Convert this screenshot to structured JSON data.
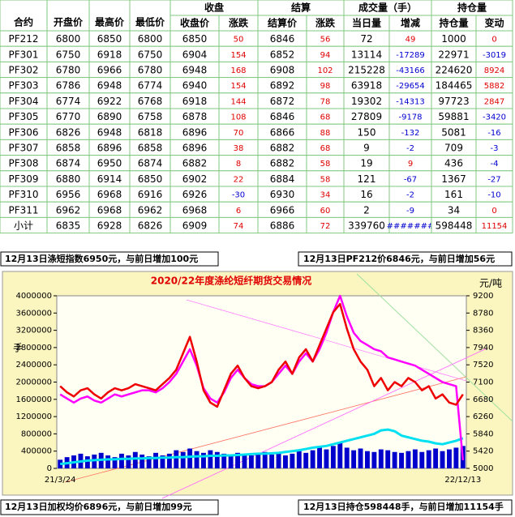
{
  "table": {
    "header": [
      [
        "合约",
        "开盘价",
        "最高价",
        "最低价",
        "收盘",
        "结算",
        "成交量（手）",
        "持仓量"
      ],
      [
        "收盘价",
        "涨跌",
        "结算价",
        "涨跌",
        "当日量",
        "增减",
        "持仓量",
        "变动"
      ]
    ],
    "rows": [
      [
        "PF212",
        6800,
        6850,
        6800,
        6850,
        50,
        6846,
        56,
        72,
        49,
        1000,
        0
      ],
      [
        "PF301",
        6750,
        6918,
        6750,
        6904,
        154,
        6852,
        94,
        13114,
        -17289,
        22971,
        -3019
      ],
      [
        "PF302",
        6780,
        6966,
        6780,
        6948,
        168,
        6908,
        102,
        215228,
        -43166,
        224620,
        8924
      ],
      [
        "PF303",
        6786,
        6948,
        6774,
        6940,
        154,
        6892,
        98,
        63918,
        -29654,
        184465,
        5882
      ],
      [
        "PF304",
        6774,
        6922,
        6768,
        6918,
        144,
        6872,
        78,
        19302,
        -14313,
        97723,
        2847
      ],
      [
        "PF305",
        6770,
        6890,
        6758,
        6878,
        108,
        6846,
        68,
        27809,
        -9178,
        59881,
        -3420
      ],
      [
        "PF306",
        6826,
        6948,
        6818,
        6896,
        70,
        6866,
        88,
        150,
        -132,
        5081,
        -16
      ],
      [
        "PF307",
        6858,
        6896,
        6858,
        6896,
        38,
        6882,
        68,
        9,
        -2,
        709,
        -3
      ],
      [
        "PF308",
        6874,
        6950,
        6874,
        6882,
        8,
        6882,
        58,
        19,
        9,
        436,
        -4
      ],
      [
        "PF309",
        6880,
        6914,
        6850,
        6902,
        22,
        6884,
        58,
        121,
        -67,
        1367,
        -27
      ],
      [
        "PF310",
        6956,
        6968,
        6916,
        6926,
        -30,
        6930,
        34,
        16,
        -2,
        161,
        -10
      ],
      [
        "PF311",
        6962,
        6968,
        6962,
        6968,
        6,
        6966,
        60,
        2,
        -9,
        34,
        0
      ],
      [
        "小计",
        6835,
        6928,
        6826,
        6909,
        74,
        6886,
        72,
        339760,
        "#######",
        598448,
        11154
      ]
    ],
    "up_color": "#e00000",
    "down_color": "#0000d0"
  },
  "notes": [
    "12月13日涤短指数6950元，与前日增加100元",
    "12月13日PF212价6846元，与前日增加56元",
    "12月13日加权均价6896元，与前日增加99元",
    "12月13日持仓598448手，与前日增加11154手"
  ],
  "chart_data": {
    "type": "combo",
    "title": "2020/22年度涤纶短纤期货交易情况",
    "y_label": "手",
    "y2_label": "元/吨",
    "categories": [
      "21/3/24",
      null,
      null,
      null,
      null,
      null,
      null,
      null,
      null,
      null,
      null,
      null,
      null,
      null,
      null,
      null,
      null,
      null,
      null,
      null,
      null,
      null,
      null,
      null,
      null,
      null,
      null,
      null,
      null,
      null,
      null,
      null,
      null,
      null,
      null,
      null,
      null,
      null,
      null,
      null,
      null,
      null,
      null,
      null,
      null,
      null,
      null,
      null,
      null,
      null,
      null,
      null,
      null,
      null,
      null,
      null,
      null,
      null,
      null,
      "22/12/13"
    ],
    "ylim": [
      0,
      4000000
    ],
    "yticks": [
      0,
      400000,
      800000,
      1200000,
      1600000,
      2000000,
      2400000,
      2800000,
      3200000,
      3600000,
      4000000
    ],
    "y2lim": [
      5000,
      9200
    ],
    "y2ticks": [
      5000,
      5420,
      5840,
      6260,
      6680,
      7100,
      7520,
      7940,
      8360,
      8780,
      9200
    ],
    "series": [
      {
        "kind": "bar",
        "color": "#0000cc",
        "values": [
          200000,
          260000,
          300000,
          340000,
          280000,
          320000,
          360000,
          300000,
          260000,
          340000,
          300000,
          380000,
          320000,
          280000,
          360000,
          300000,
          340000,
          420000,
          380000,
          460000,
          400000,
          360000,
          420000,
          380000,
          340000,
          300000,
          360000,
          320000,
          300000,
          340000,
          380000,
          320000,
          360000,
          300000,
          340000,
          400000,
          360000,
          420000,
          480000,
          440000,
          520000,
          600000,
          480000,
          420000,
          460000,
          400000,
          380000,
          440000,
          420000,
          380000,
          360000,
          400000,
          440000,
          380000,
          420000,
          460000,
          400000,
          440000,
          480000,
          520000
        ]
      },
      {
        "kind": "line",
        "color": "#00e0f0",
        "values": [
          100000,
          120000,
          140000,
          160000,
          180000,
          190000,
          200000,
          210000,
          210000,
          220000,
          220000,
          230000,
          230000,
          240000,
          240000,
          250000,
          250000,
          260000,
          260000,
          270000,
          280000,
          280000,
          290000,
          290000,
          300000,
          300000,
          310000,
          320000,
          330000,
          340000,
          340000,
          350000,
          360000,
          380000,
          400000,
          420000,
          450000,
          480000,
          500000,
          520000,
          560000,
          600000,
          640000,
          680000,
          720000,
          760000,
          800000,
          880000,
          900000,
          860000,
          760000,
          720000,
          680000,
          640000,
          620000,
          580000,
          560000,
          600000,
          640000,
          700000
        ]
      },
      {
        "kind": "line",
        "axis": "y2",
        "color": "#ff00ff",
        "values": [
          6800,
          6700,
          6600,
          6700,
          6750,
          6650,
          6600,
          6700,
          6800,
          6750,
          6800,
          6850,
          6900,
          6900,
          6850,
          6950,
          7100,
          7300,
          7600,
          7900,
          7500,
          6950,
          6700,
          6600,
          6850,
          7200,
          7400,
          7200,
          7050,
          7000,
          7000,
          7100,
          7300,
          7500,
          7300,
          7600,
          7800,
          7600,
          7900,
          8300,
          8800,
          9200,
          8700,
          8300,
          8100,
          8000,
          7900,
          7850,
          7700,
          7650,
          7600,
          7550,
          7500,
          7400,
          7300,
          7200,
          7100,
          7050,
          7000,
          5200
        ]
      },
      {
        "kind": "line",
        "axis": "y2",
        "color": "#ee0000",
        "values": [
          7000,
          6850,
          6750,
          6900,
          6950,
          6800,
          6700,
          6850,
          6950,
          6900,
          6950,
          7050,
          7000,
          6950,
          6900,
          7050,
          7200,
          7400,
          7800,
          8200,
          7600,
          6900,
          6600,
          6500,
          6900,
          7300,
          7500,
          7200,
          7000,
          6950,
          7000,
          7100,
          7400,
          7600,
          7300,
          7700,
          7900,
          7600,
          8000,
          8400,
          8800,
          9000,
          8400,
          7900,
          7600,
          7400,
          7000,
          7200,
          6900,
          7100,
          7000,
          7200,
          7100,
          6900,
          7000,
          6700,
          6800,
          6600,
          6550,
          6800
        ]
      }
    ]
  }
}
